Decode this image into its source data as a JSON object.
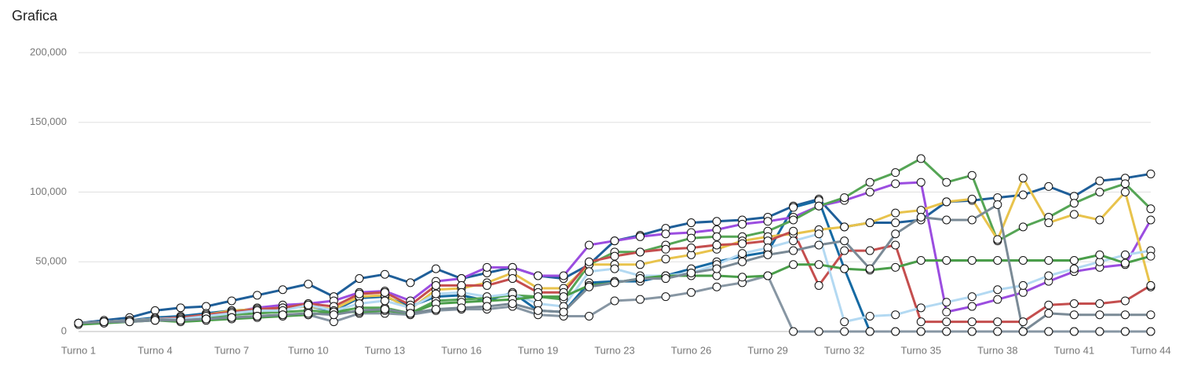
{
  "chart_data": {
    "type": "line",
    "title": "Grafica",
    "categories": [
      "Turno 1",
      null,
      null,
      "Turno 4",
      null,
      null,
      "Turno 7",
      null,
      null,
      "Turno 10",
      null,
      null,
      "Turno 13",
      null,
      null,
      "Turno 16",
      null,
      null,
      "Turno 19",
      null,
      null,
      "Turno 23",
      null,
      null,
      "Turno 26",
      null,
      null,
      "Turno 29",
      null,
      null,
      "Turno 32",
      null,
      null,
      "Turno 35",
      null,
      null,
      "Turno 38",
      null,
      null,
      "Turno 41",
      null,
      null,
      "Turno 44"
    ],
    "ylim": [
      0,
      200000
    ],
    "yticks": [
      0,
      {
        "value": 50000,
        "label": "50,000"
      },
      {
        "value": 100000,
        "label": "100,000"
      },
      {
        "value": 150000,
        "label": "150,000"
      },
      {
        "value": 200000,
        "label": "200,000"
      }
    ],
    "grid": true,
    "series": [
      {
        "color": "#1f5f99",
        "values": [
          6000,
          8000,
          10000,
          15000,
          17000,
          18000,
          22000,
          26000,
          30000,
          34000,
          25000,
          38000,
          41000,
          35000,
          45000,
          38000,
          42000,
          46000,
          40000,
          38000,
          48000,
          65000,
          69000,
          74000,
          78000,
          79000,
          80000,
          82000,
          90000,
          95000,
          75000,
          78000,
          78000,
          80000,
          93000,
          94000,
          96000,
          98000,
          104000,
          97000,
          108000,
          110000,
          113000
        ]
      },
      {
        "color": "#166aa3",
        "values": [
          6000,
          7000,
          8000,
          10000,
          11000,
          13000,
          15000,
          16000,
          17000,
          18000,
          15000,
          24000,
          25000,
          18000,
          25000,
          26000,
          22000,
          28000,
          15000,
          14000,
          35000,
          36000,
          36000,
          40000,
          45000,
          50000,
          54000,
          57000,
          89000,
          94000,
          45000,
          0,
          0,
          0,
          0,
          0,
          0,
          0,
          0,
          0,
          0,
          0,
          0
        ]
      },
      {
        "color": "#9b4de0",
        "values": [
          6000,
          7000,
          8000,
          9000,
          10000,
          11000,
          14000,
          17000,
          19000,
          20000,
          22000,
          28000,
          29000,
          22000,
          36000,
          38000,
          46000,
          46000,
          40000,
          40000,
          62000,
          65000,
          68000,
          70000,
          71000,
          73000,
          77000,
          79000,
          82000,
          90000,
          94000,
          100000,
          106000,
          107000,
          14000,
          18000,
          23000,
          28000,
          36000,
          43000,
          46000,
          48000,
          80000
        ]
      },
      {
        "color": "#55a555",
        "values": [
          6000,
          7000,
          8000,
          9000,
          8000,
          10000,
          12000,
          13000,
          14000,
          15000,
          14000,
          17000,
          17000,
          13000,
          22000,
          23000,
          24000,
          26000,
          25000,
          23000,
          48000,
          57000,
          57000,
          62000,
          67000,
          68000,
          68000,
          72000,
          80000,
          90000,
          96000,
          107000,
          114000,
          124000,
          107000,
          112000,
          65000,
          75000,
          82000,
          92000,
          100000,
          106000,
          88000
        ]
      },
      {
        "color": "#e8c34c",
        "values": [
          6000,
          7000,
          8000,
          9000,
          10000,
          12000,
          15000,
          16000,
          17000,
          18000,
          16000,
          25000,
          26000,
          16000,
          30000,
          31000,
          35000,
          42000,
          31000,
          31000,
          48000,
          48000,
          48000,
          52000,
          55000,
          59000,
          65000,
          68000,
          70000,
          73000,
          75000,
          78000,
          85000,
          87000,
          93000,
          95000,
          66000,
          110000,
          78000,
          84000,
          80000,
          100000,
          32000
        ]
      },
      {
        "color": "#c44e4e",
        "values": [
          6000,
          7000,
          8000,
          9000,
          10000,
          12000,
          14000,
          16000,
          17000,
          20000,
          18000,
          27000,
          28000,
          19000,
          33000,
          33000,
          33000,
          38000,
          28000,
          28000,
          50000,
          54000,
          57000,
          59000,
          60000,
          62000,
          63000,
          65000,
          72000,
          33000,
          58000,
          58000,
          62000,
          7000,
          7000,
          7000,
          7000,
          7000,
          19000,
          20000,
          20000,
          22000,
          33000
        ]
      },
      {
        "color": "#b3d9f2",
        "values": [
          6000,
          7000,
          8000,
          9000,
          9000,
          11000,
          13000,
          15000,
          15000,
          19000,
          15000,
          20000,
          22000,
          17000,
          27000,
          28000,
          25000,
          27000,
          20000,
          18000,
          43000,
          45000,
          40000,
          40000,
          42000,
          48000,
          56000,
          60000,
          65000,
          70000,
          7000,
          11000,
          12000,
          17000,
          21000,
          25000,
          30000,
          33000,
          40000,
          45000,
          50000,
          55000,
          58000
        ]
      },
      {
        "color": "#8796a3",
        "values": [
          6000,
          7000,
          8000,
          9000,
          8000,
          9000,
          10000,
          11000,
          12000,
          12000,
          7000,
          13000,
          13000,
          12000,
          15000,
          16000,
          16000,
          18000,
          12000,
          11000,
          11000,
          22000,
          23000,
          25000,
          28000,
          32000,
          35000,
          40000,
          0,
          0,
          0,
          0,
          0,
          0,
          0,
          0,
          0,
          0,
          0,
          0,
          0,
          0,
          0
        ]
      },
      {
        "color": "#4a9e4a",
        "values": [
          5000,
          6000,
          7000,
          8000,
          7000,
          8000,
          9000,
          10000,
          11000,
          12000,
          14000,
          14000,
          15000,
          13000,
          20000,
          21000,
          22000,
          23000,
          25000,
          25000,
          33000,
          35000,
          38000,
          40000,
          40000,
          40000,
          39000,
          40000,
          48000,
          48000,
          45000,
          44000,
          46000,
          51000,
          51000,
          51000,
          51000,
          51000,
          51000,
          51000,
          55000,
          49000,
          54000
        ]
      },
      {
        "color": "#7a8a96",
        "values": [
          6000,
          7000,
          7000,
          8000,
          8000,
          9000,
          10000,
          11000,
          12000,
          13000,
          12000,
          15000,
          16000,
          13000,
          16000,
          17000,
          18000,
          20000,
          15000,
          14000,
          32000,
          35000,
          38000,
          38000,
          42000,
          45000,
          50000,
          55000,
          58000,
          62000,
          65000,
          45000,
          70000,
          82000,
          80000,
          80000,
          91000,
          0,
          13000,
          12000,
          12000,
          12000,
          12000
        ]
      }
    ]
  }
}
